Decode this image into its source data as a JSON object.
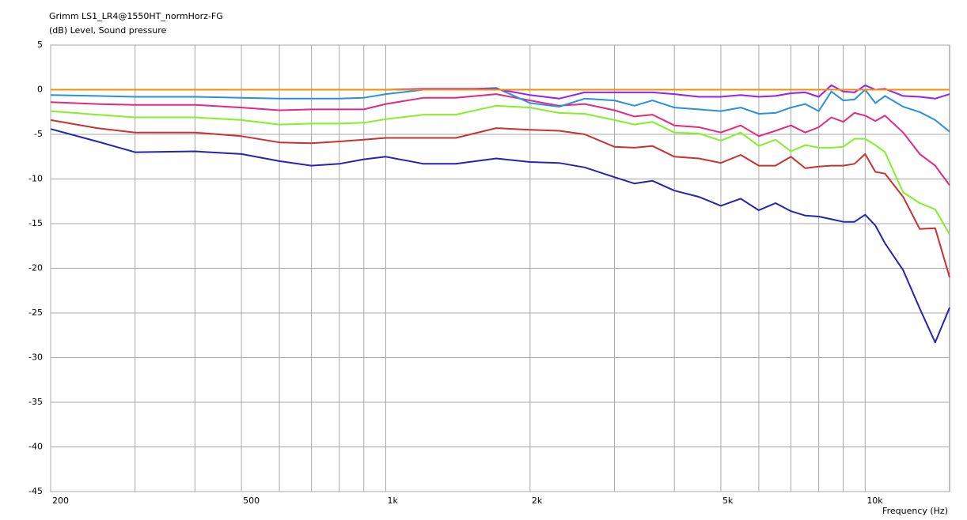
{
  "chart_data": {
    "type": "line",
    "title": "Grimm LS1_LR4@1550HT_normHorz-FG",
    "y_label": "(dB)  Level, Sound pressure",
    "x_label": "Frequency  (Hz)",
    "x_log": true,
    "grid": true,
    "xlim": [
      200,
      15000
    ],
    "ylim": [
      -45,
      5
    ],
    "xticks": [
      200,
      500,
      {
        "value": 1000,
        "label": "1k"
      },
      {
        "value": 2000,
        "label": "2k"
      },
      {
        "value": 5000,
        "label": "5k"
      },
      {
        "value": 10000,
        "label": "10k"
      }
    ],
    "xticks_minor": [
      300,
      400,
      600,
      700,
      800,
      900,
      3000,
      4000,
      6000,
      7000,
      8000,
      9000
    ],
    "yticks": [
      -45,
      -40,
      -35,
      -30,
      -25,
      -20,
      -15,
      -10,
      -5,
      0,
      5
    ],
    "x": [
      200,
      250,
      300,
      400,
      500,
      600,
      700,
      800,
      900,
      1000,
      1200,
      1400,
      1700,
      2000,
      2300,
      2600,
      3000,
      3300,
      3600,
      4000,
      4500,
      5000,
      5500,
      6000,
      6500,
      7000,
      7500,
      8000,
      8500,
      9000,
      9500,
      10000,
      10500,
      11000,
      12000,
      13000,
      14000,
      15000
    ],
    "series": [
      {
        "color": "#2424b4",
        "values": [
          -4.4,
          -5.8,
          -7,
          -6.9,
          -7.2,
          -8,
          -8.5,
          -8.3,
          -7.8,
          -7.5,
          -8.3,
          -8.3,
          -7.7,
          -8.1,
          -8.2,
          -8.7,
          -9.8,
          -10.5,
          -10.2,
          -11.3,
          -12,
          -13,
          -12.2,
          -13.5,
          -12.7,
          -13.6,
          -14.1,
          -14.2,
          -14.5,
          -14.8,
          -14.8,
          -14,
          -15.2,
          -17.2,
          -20.2,
          -24.5,
          -28.3,
          -24.4
        ]
      },
      {
        "color": "#c83232",
        "values": [
          -3.4,
          -4.3,
          -4.8,
          -4.8,
          -5.2,
          -5.9,
          -6,
          -5.8,
          -5.6,
          -5.4,
          -5.4,
          -5.4,
          -4.3,
          -4.5,
          -4.6,
          -5,
          -6.4,
          -6.5,
          -6.3,
          -7.5,
          -7.7,
          -8.2,
          -7.3,
          -8.5,
          -8.5,
          -7.5,
          -8.8,
          -8.6,
          -8.5,
          -8.5,
          -8.3,
          -7.2,
          -9.2,
          -9.4,
          -12,
          -15.6,
          -15.5,
          -21
        ]
      },
      {
        "color": "#84f028",
        "values": [
          -2.4,
          -2.8,
          -3.1,
          -3.1,
          -3.4,
          -3.9,
          -3.8,
          -3.8,
          -3.7,
          -3.3,
          -2.8,
          -2.8,
          -1.8,
          -2,
          -2.6,
          -2.7,
          -3.4,
          -3.9,
          -3.6,
          -4.8,
          -4.9,
          -5.7,
          -4.8,
          -6.3,
          -5.6,
          -6.9,
          -6.2,
          -6.5,
          -6.5,
          -6.4,
          -5.5,
          -5.5,
          -6.2,
          -7,
          -11.5,
          -12.7,
          -13.4,
          -16.2
        ]
      },
      {
        "color": "#e6287c",
        "values": [
          -1.4,
          -1.6,
          -1.7,
          -1.7,
          -2,
          -2.3,
          -2.2,
          -2.2,
          -2.2,
          -1.6,
          -0.9,
          -0.9,
          -0.5,
          -1.2,
          -1.8,
          -1.6,
          -2.3,
          -3,
          -2.8,
          -4,
          -4.2,
          -4.8,
          -4,
          -5.2,
          -4.6,
          -4,
          -4.8,
          -4.2,
          -3.1,
          -3.6,
          -2.6,
          -2.9,
          -3.5,
          -2.9,
          -4.8,
          -7.2,
          -8.5,
          -10.7
        ]
      },
      {
        "color": "#2890e0",
        "values": [
          -0.6,
          -0.7,
          -0.8,
          -0.8,
          -0.9,
          -1,
          -1,
          -1,
          -0.9,
          -0.5,
          0,
          0,
          0.2,
          -1.5,
          -1.9,
          -1,
          -1.2,
          -1.8,
          -1.2,
          -2,
          -2.2,
          -2.4,
          -2,
          -2.7,
          -2.6,
          -2,
          -1.6,
          -2.4,
          -0.2,
          -1.2,
          -1.1,
          0,
          -1.5,
          -0.7,
          -1.9,
          -2.5,
          -3.4,
          -4.7
        ]
      },
      {
        "color": "#9620f0",
        "values": [
          0,
          0,
          0,
          0,
          0,
          0,
          0,
          0,
          0,
          0,
          0.1,
          0.1,
          0.1,
          -0.6,
          -1,
          -0.3,
          -0.3,
          -0.3,
          -0.3,
          -0.5,
          -0.8,
          -0.8,
          -0.6,
          -0.8,
          -0.7,
          -0.4,
          -0.3,
          -0.8,
          0.5,
          -0.2,
          -0.3,
          0.5,
          0,
          0.1,
          -0.7,
          -0.8,
          -1,
          -0.5
        ]
      },
      {
        "color": "#ff8c00",
        "values": [
          0,
          0,
          0,
          0,
          0,
          0,
          0,
          0,
          0,
          0,
          0,
          0,
          0,
          0,
          0,
          0,
          0,
          0,
          0,
          0,
          0,
          0,
          0,
          0,
          0,
          0,
          0,
          0,
          0,
          0,
          0,
          0,
          0,
          0,
          0,
          0,
          0,
          0
        ]
      }
    ]
  }
}
